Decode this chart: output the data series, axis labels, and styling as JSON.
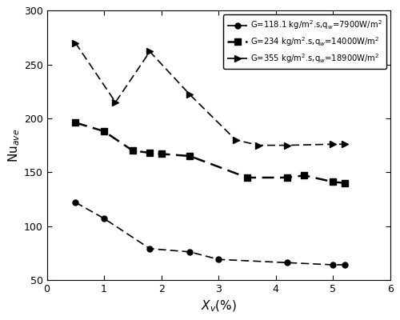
{
  "series1": {
    "x": [
      0.5,
      1.0,
      1.8,
      2.5,
      3.0,
      4.2,
      5.0,
      5.2
    ],
    "y": [
      122,
      107,
      79,
      76,
      69,
      66,
      64,
      64
    ],
    "label": "G=118.1 kg/m².s,q_w=7900W/m²",
    "marker": "o",
    "color": "black"
  },
  "series2": {
    "x": [
      0.5,
      1.0,
      1.5,
      1.8,
      2.0,
      2.5,
      3.5,
      4.2,
      4.5,
      5.0,
      5.2
    ],
    "y": [
      196,
      188,
      170,
      168,
      167,
      165,
      145,
      145,
      147,
      141,
      140
    ],
    "label": "G=234 kg/m².s,q_w=14000W/m²",
    "marker": "s",
    "color": "black"
  },
  "series3": {
    "x": [
      0.5,
      1.2,
      1.8,
      2.5,
      3.3,
      3.7,
      4.2,
      5.0,
      5.2
    ],
    "y": [
      270,
      215,
      262,
      222,
      180,
      175,
      175,
      176,
      176
    ],
    "label": "G=355 kg/m².s,q_w=18900W/m²",
    "marker": ">",
    "color": "black"
  },
  "xlabel": "X_v(%)",
  "ylabel": "Nu_ave",
  "xlim": [
    0,
    6
  ],
  "ylim": [
    50,
    300
  ],
  "yticks": [
    50,
    100,
    150,
    200,
    250,
    300
  ],
  "xticks": [
    0,
    1,
    2,
    3,
    4,
    5,
    6
  ],
  "figsize": [
    5.0,
    4.0
  ],
  "dpi": 100
}
